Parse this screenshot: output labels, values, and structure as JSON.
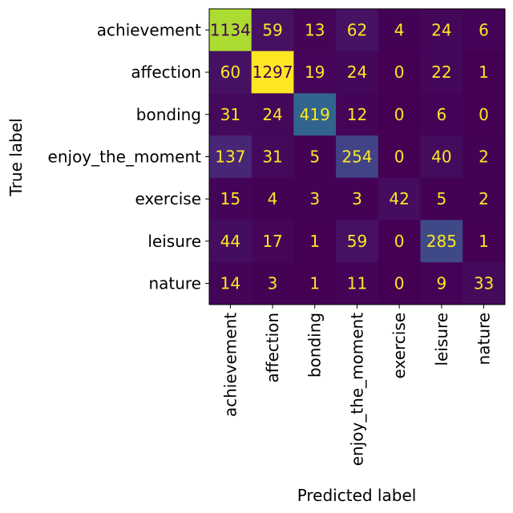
{
  "chart_data": {
    "type": "heatmap",
    "xlabel": "Predicted label",
    "ylabel": "True label",
    "x_categories": [
      "achievement",
      "affection",
      "bonding",
      "enjoy_the_moment",
      "exercise",
      "leisure",
      "nature"
    ],
    "y_categories": [
      "achievement",
      "affection",
      "bonding",
      "enjoy_the_moment",
      "exercise",
      "leisure",
      "nature"
    ],
    "values": [
      [
        1134,
        59,
        13,
        62,
        4,
        24,
        6
      ],
      [
        60,
        1297,
        19,
        24,
        0,
        22,
        1
      ],
      [
        31,
        24,
        419,
        12,
        0,
        6,
        0
      ],
      [
        137,
        31,
        5,
        254,
        0,
        40,
        2
      ],
      [
        15,
        4,
        3,
        3,
        42,
        5,
        2
      ],
      [
        44,
        17,
        1,
        59,
        0,
        285,
        1
      ],
      [
        14,
        3,
        1,
        11,
        0,
        9,
        33
      ]
    ],
    "colormap": "viridis",
    "value_range": [
      0,
      1297
    ],
    "text_color_dark": "#fde725",
    "text_color_light": "#440154",
    "grid": false,
    "colorbar": false
  }
}
